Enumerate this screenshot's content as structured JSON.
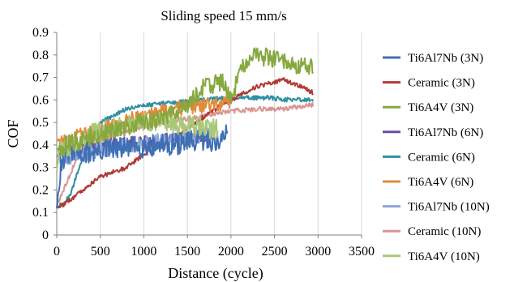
{
  "chart_data": {
    "type": "line",
    "title": "Sliding speed 15 mm/s",
    "xlabel": "Distance (cycle)",
    "ylabel": "COF",
    "xlim": [
      0,
      3500
    ],
    "ylim": [
      0,
      0.9
    ],
    "x_ticks": [
      0,
      500,
      1000,
      1500,
      2000,
      2500,
      3000,
      3500
    ],
    "y_ticks": [
      0,
      0.1,
      0.2,
      0.3,
      0.4,
      0.5,
      0.6,
      0.7,
      0.8,
      0.9
    ],
    "x_tick_labels": [
      "0",
      "500",
      "1000",
      "1500",
      "2000",
      "2500",
      "3000",
      "3500"
    ],
    "y_tick_labels": [
      "0",
      "0.1",
      "0.2",
      "0.3",
      "0.4",
      "0.5",
      "0.6",
      "0.7",
      "0.8",
      "0.9"
    ],
    "grid": "vertical",
    "legend_position": "right",
    "series": [
      {
        "name": "Ti6Al7Nb (3N)",
        "color": "#3f6fb5",
        "noise": 0.05,
        "x": [
          0,
          50,
          150,
          300,
          600,
          900,
          1200,
          1500,
          1700,
          1900,
          1960
        ],
        "y": [
          0.12,
          0.33,
          0.37,
          0.36,
          0.38,
          0.39,
          0.4,
          0.41,
          0.42,
          0.42,
          0.46
        ]
      },
      {
        "name": "Ceramic (3N)",
        "color": "#b03a35",
        "noise": 0.01,
        "x": [
          0,
          100,
          300,
          500,
          800,
          1000,
          1300,
          1600,
          1900,
          2100,
          2300,
          2600,
          2800,
          2950
        ],
        "y": [
          0.12,
          0.14,
          0.2,
          0.26,
          0.3,
          0.36,
          0.42,
          0.5,
          0.58,
          0.62,
          0.66,
          0.69,
          0.66,
          0.63
        ]
      },
      {
        "name": "Ti6A4V (3N)",
        "color": "#86a83f",
        "noise": 0.04,
        "x": [
          0,
          100,
          400,
          800,
          1200,
          1500,
          1700,
          1900,
          2000,
          2100,
          2200,
          2400,
          2600,
          2800,
          2950
        ],
        "y": [
          0.38,
          0.4,
          0.44,
          0.48,
          0.52,
          0.58,
          0.66,
          0.68,
          0.6,
          0.72,
          0.79,
          0.79,
          0.77,
          0.75,
          0.74
        ]
      },
      {
        "name": "Ti6Al7Nb (6N)",
        "color": "#6b4c9a",
        "noise": 0.03,
        "x": [
          0,
          100,
          300,
          600,
          900,
          1200,
          1500,
          1800
        ],
        "y": [
          0.35,
          0.37,
          0.38,
          0.4,
          0.41,
          0.42,
          0.43,
          0.45
        ]
      },
      {
        "name": "Ceramic (6N)",
        "color": "#2e8fa3",
        "noise": 0.01,
        "x": [
          0,
          150,
          300,
          500,
          800,
          1100,
          1400,
          1700,
          2000,
          2400,
          2700,
          2950
        ],
        "y": [
          0.12,
          0.17,
          0.35,
          0.5,
          0.56,
          0.58,
          0.59,
          0.6,
          0.61,
          0.61,
          0.6,
          0.6
        ]
      },
      {
        "name": "Ti6A4V (6N)",
        "color": "#e38a3a",
        "noise": 0.035,
        "x": [
          0,
          100,
          300,
          600,
          900,
          1200,
          1500,
          1800,
          1990
        ],
        "y": [
          0.42,
          0.42,
          0.45,
          0.48,
          0.52,
          0.55,
          0.57,
          0.58,
          0.58
        ]
      },
      {
        "name": "Ti6Al7Nb (10N)",
        "color": "#8ea6d7",
        "noise": 0.035,
        "x": [
          0,
          150,
          400,
          700,
          1000,
          1300,
          1600,
          1800
        ],
        "y": [
          0.33,
          0.35,
          0.37,
          0.39,
          0.41,
          0.42,
          0.44,
          0.45
        ]
      },
      {
        "name": "Ceramic (10N)",
        "color": "#d99694",
        "noise": 0.01,
        "x": [
          0,
          100,
          250,
          500,
          800,
          1100,
          1400,
          1700,
          2000,
          2300,
          2600,
          2800,
          2950
        ],
        "y": [
          0.13,
          0.22,
          0.36,
          0.42,
          0.46,
          0.49,
          0.51,
          0.53,
          0.55,
          0.56,
          0.56,
          0.57,
          0.58
        ]
      },
      {
        "name": "Ti6A4V (10N)",
        "color": "#aac87a",
        "noise": 0.045,
        "x": [
          0,
          30,
          150,
          400,
          700,
          1000,
          1300,
          1600,
          1850
        ],
        "y": [
          0.28,
          0.38,
          0.4,
          0.45,
          0.48,
          0.5,
          0.5,
          0.48,
          0.47
        ]
      }
    ]
  }
}
